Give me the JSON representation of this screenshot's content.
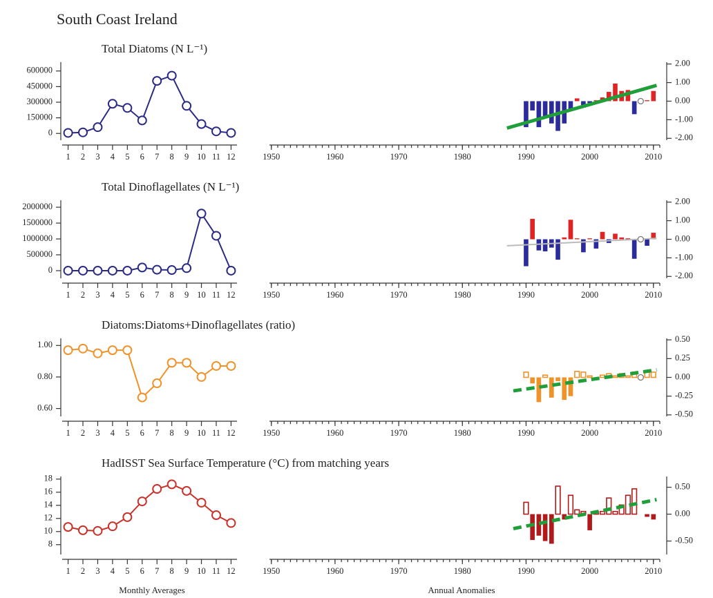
{
  "title": "South Coast Ireland",
  "footer": [
    "Monthly Averages",
    "Annual Anomalies"
  ],
  "chart_data": [
    {
      "type": "line",
      "title": "Total Diatoms (N L⁻¹)",
      "color": "#2b2b86",
      "marker": "open-circle",
      "x": [
        1,
        2,
        3,
        4,
        5,
        6,
        7,
        8,
        9,
        10,
        11,
        12
      ],
      "values": [
        5000,
        10000,
        60000,
        285000,
        245000,
        125000,
        505000,
        555000,
        265000,
        90000,
        20000,
        5000
      ],
      "xlim": [
        0.6,
        12.4
      ],
      "xticks": [
        1,
        2,
        3,
        4,
        5,
        6,
        7,
        8,
        9,
        10,
        11,
        12
      ],
      "ylim": [
        -65000,
        685000
      ],
      "yticks": [
        0,
        150000,
        300000,
        450000,
        600000
      ]
    },
    {
      "type": "bar",
      "y_axis": "right",
      "x": [
        1990,
        1991,
        1992,
        1993,
        1994,
        1995,
        1996,
        1997,
        1998,
        1999,
        2000,
        2001,
        2002,
        2003,
        2004,
        2005,
        2006,
        2007,
        2008,
        2009,
        2010
      ],
      "values": [
        -1.4,
        -0.5,
        -1.4,
        -0.8,
        -1.2,
        -1.6,
        -1.2,
        -0.5,
        0.15,
        -0.35,
        -0.1,
        0.05,
        0.2,
        0.5,
        0.95,
        0.55,
        0.6,
        -0.7,
        null,
        0.05,
        0.55
      ],
      "positive_color": "#e02424",
      "negative_color": "#2b2b9c",
      "positive_fill": true,
      "trend": {
        "x": [
          1987,
          2010.5
        ],
        "values": [
          -1.45,
          0.85
        ],
        "color": "#1f9e3a",
        "dashed": false
      },
      "marker": {
        "x": 2008,
        "value": 0
      },
      "xlim": [
        1949.7,
        2011
      ],
      "xticks": [
        1950,
        1960,
        1970,
        1980,
        1990,
        2000,
        2010
      ],
      "ylim": [
        -2.1,
        2.1
      ],
      "yticks": [
        {
          "value": 2,
          "label": "2.00"
        },
        {
          "value": 1,
          "label": "1.00"
        },
        {
          "value": 0,
          "label": "0.00"
        },
        {
          "value": -1,
          "label": "-1.00"
        },
        {
          "value": -2,
          "label": "-2.00"
        }
      ]
    },
    {
      "type": "line",
      "title": "Total Dinoflagellates (N L⁻¹)",
      "color": "#2b2b86",
      "marker": "open-circle",
      "x": [
        1,
        2,
        3,
        4,
        5,
        6,
        7,
        8,
        9,
        10,
        11,
        12
      ],
      "values": [
        0,
        0,
        0,
        0,
        0,
        100000,
        30000,
        20000,
        80000,
        1800000,
        1100000,
        0
      ],
      "xlim": [
        0.6,
        12.4
      ],
      "xticks": [
        1,
        2,
        3,
        4,
        5,
        6,
        7,
        8,
        9,
        10,
        11,
        12
      ],
      "ylim": [
        -240000,
        2220000
      ],
      "yticks": [
        0,
        500000,
        1000000,
        1500000,
        2000000
      ]
    },
    {
      "type": "bar",
      "y_axis": "right",
      "x": [
        1990,
        1991,
        1992,
        1993,
        1994,
        1995,
        1996,
        1997,
        1998,
        1999,
        2000,
        2001,
        2002,
        2003,
        2004,
        2005,
        2006,
        2007,
        2008,
        2009,
        2010
      ],
      "values": [
        -1.45,
        1.1,
        -0.6,
        -0.65,
        -0.45,
        -1.1,
        0.1,
        1.05,
        0.05,
        -0.7,
        0.05,
        -0.5,
        0.4,
        -0.2,
        0.3,
        0.1,
        0.05,
        -1.05,
        null,
        -0.35,
        0.35
      ],
      "positive_color": "#e02424",
      "negative_color": "#2b2b9c",
      "positive_fill": true,
      "trend": {
        "x": [
          1987,
          2010.5
        ],
        "values": [
          -0.35,
          0.05
        ],
        "color": "#bbbbbb",
        "dashed": false
      },
      "marker": {
        "x": 2008,
        "value": 0
      },
      "xlim": [
        1949.7,
        2011
      ],
      "xticks": [
        1950,
        1960,
        1970,
        1980,
        1990,
        2000,
        2010
      ],
      "ylim": [
        -2.1,
        2.1
      ],
      "yticks": [
        {
          "value": 2,
          "label": "2.00"
        },
        {
          "value": 1,
          "label": "1.00"
        },
        {
          "value": 0,
          "label": "0.00"
        },
        {
          "value": -1,
          "label": "-1.00"
        },
        {
          "value": -2,
          "label": "-2.00"
        }
      ]
    },
    {
      "type": "line",
      "title": "Diatoms:Diatoms+Dinoflagellates (ratio)",
      "color": "#f0922a",
      "marker": "open-circle",
      "x": [
        1,
        2,
        3,
        4,
        5,
        6,
        7,
        8,
        9,
        10,
        11,
        12
      ],
      "values": [
        0.97,
        0.98,
        0.95,
        0.97,
        0.97,
        0.67,
        0.76,
        0.89,
        0.89,
        0.8,
        0.87,
        0.87
      ],
      "xlim": [
        0.6,
        12.4
      ],
      "xticks": [
        1,
        2,
        3,
        4,
        5,
        6,
        7,
        8,
        9,
        10,
        11,
        12
      ],
      "ylim": [
        0.55,
        1.045
      ],
      "yticks": [
        {
          "value": 0.6,
          "label": "0.60"
        },
        {
          "value": 0.8,
          "label": "0.80"
        },
        {
          "value": 1,
          "label": "1.00"
        }
      ]
    },
    {
      "type": "bar",
      "y_axis": "right",
      "x": [
        1990,
        1991,
        1992,
        1993,
        1994,
        1995,
        1996,
        1997,
        1998,
        1999,
        2000,
        2001,
        2002,
        2003,
        2004,
        2005,
        2006,
        2007,
        2008,
        2009,
        2010
      ],
      "values": [
        0.07,
        -0.08,
        -0.33,
        0.03,
        -0.27,
        -0.05,
        -0.3,
        -0.25,
        0.08,
        0.07,
        0.02,
        -0.02,
        0.03,
        0.05,
        0.02,
        0.05,
        0.02,
        0.07,
        null,
        0.07,
        0.07
      ],
      "positive_color": "#f0922a",
      "negative_color": "#f0922a",
      "positive_fill": false,
      "trend": {
        "x": [
          1988,
          2010.5
        ],
        "values": [
          -0.18,
          0.1
        ],
        "color": "#1f9e3a",
        "dashed": true
      },
      "marker": {
        "x": 2008,
        "value": 0
      },
      "xlim": [
        1949.7,
        2011
      ],
      "xticks": [
        1950,
        1960,
        1970,
        1980,
        1990,
        2000,
        2010
      ],
      "ylim": [
        -0.52,
        0.52
      ],
      "yticks": [
        {
          "value": 0.5,
          "label": "0.50"
        },
        {
          "value": 0.25,
          "label": "0.25"
        },
        {
          "value": 0,
          "label": "0.00"
        },
        {
          "value": -0.25,
          "label": "-0.25"
        },
        {
          "value": -0.5,
          "label": "-0.50"
        }
      ]
    },
    {
      "type": "line",
      "title": "HadISST Sea Surface Temperature (°C) from matching years",
      "color": "#c8322a",
      "marker": "open-circle",
      "x": [
        1,
        2,
        3,
        4,
        5,
        6,
        7,
        8,
        9,
        10,
        11,
        12
      ],
      "values": [
        10.7,
        10.2,
        10.1,
        10.8,
        12.2,
        14.6,
        16.5,
        17.2,
        16.2,
        14.4,
        12.5,
        11.3
      ],
      "xlim": [
        0.6,
        12.4
      ],
      "xticks": [
        1,
        2,
        3,
        4,
        5,
        6,
        7,
        8,
        9,
        10,
        11,
        12
      ],
      "ylim": [
        6.5,
        18.4
      ],
      "yticks": [
        8,
        10,
        12,
        14,
        16,
        18
      ]
    },
    {
      "type": "bar",
      "y_axis": "right",
      "x": [
        1990,
        1991,
        1992,
        1993,
        1994,
        1995,
        1996,
        1997,
        1998,
        1999,
        2000,
        2001,
        2002,
        2003,
        2004,
        2005,
        2006,
        2007,
        2008,
        2009,
        2010
      ],
      "values": [
        0.22,
        -0.48,
        -0.4,
        -0.5,
        -0.55,
        0.52,
        -0.1,
        0.35,
        0.08,
        0.05,
        -0.3,
        0.05,
        0.05,
        0.3,
        0.05,
        0.17,
        0.35,
        0.47,
        null,
        -0.05,
        -0.1
      ],
      "positive_color": "#b01a1a",
      "negative_color": "#b01a1a",
      "positive_fill": false,
      "trend": {
        "x": [
          1988,
          2010.5
        ],
        "values": [
          -0.27,
          0.27
        ],
        "color": "#1f9e3a",
        "dashed": true
      },
      "xlim": [
        1949.7,
        2011
      ],
      "xticks": [
        1950,
        1960,
        1970,
        1980,
        1990,
        2000,
        2010
      ],
      "ylim": [
        -0.75,
        0.7
      ],
      "yticks": [
        {
          "value": 0.5,
          "label": "0.50"
        },
        {
          "value": 0,
          "label": "0.00"
        },
        {
          "value": -0.5,
          "label": "-0.50"
        }
      ]
    }
  ]
}
